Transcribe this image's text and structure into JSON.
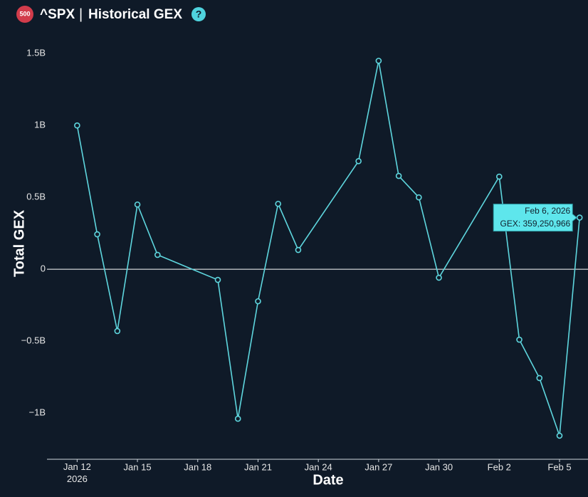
{
  "header": {
    "badge": "500",
    "symbol": "^SPX",
    "separator": "|",
    "title": "Historical GEX",
    "help": "?"
  },
  "chart_data": {
    "type": "line",
    "x_label": "Date",
    "y_label": "Total GEX",
    "x": [
      "2026-01-12",
      "2026-01-13",
      "2026-01-14",
      "2026-01-15",
      "2026-01-16",
      "2026-01-19",
      "2026-01-20",
      "2026-01-21",
      "2026-01-22",
      "2026-01-23",
      "2026-01-26",
      "2026-01-27",
      "2026-01-28",
      "2026-01-29",
      "2026-01-30",
      "2026-02-02",
      "2026-02-03",
      "2026-02-04",
      "2026-02-05",
      "2026-02-06"
    ],
    "series": [
      {
        "name": "GEX",
        "color": "#5ed6de",
        "values": [
          1000000000,
          243000000,
          -430000000,
          450000000,
          100000000,
          -74000000,
          -1040000000,
          -223000000,
          455000000,
          134000000,
          752000000,
          1450000000,
          649000000,
          500000000,
          -59000000,
          644000000,
          -490000000,
          -757000000,
          -1158000000,
          359250966
        ]
      }
    ],
    "xlim": [
      "2026-01-10T12:00",
      "2026-02-06T10:00"
    ],
    "xticks": [
      {
        "value": "2026-01-12",
        "label": "Jan 12\n2026"
      },
      {
        "value": "2026-01-15",
        "label": "Jan 15"
      },
      {
        "value": "2026-01-18",
        "label": "Jan 18"
      },
      {
        "value": "2026-01-21",
        "label": "Jan 21"
      },
      {
        "value": "2026-01-24",
        "label": "Jan 24"
      },
      {
        "value": "2026-01-27",
        "label": "Jan 27"
      },
      {
        "value": "2026-01-30",
        "label": "Jan 30"
      },
      {
        "value": "2026-02-02",
        "label": "Feb 2"
      },
      {
        "value": "2026-02-05",
        "label": "Feb 5"
      }
    ],
    "ylim": [
      -1322000000,
      1650000000
    ],
    "yticks": [
      {
        "value": -1000000000,
        "label": "−1B"
      },
      {
        "value": -500000000,
        "label": "−0.5B"
      },
      0,
      {
        "value": 500000000,
        "label": "0.5B"
      },
      {
        "value": 1000000000,
        "label": "1B"
      },
      {
        "value": 1500000000,
        "label": "1.5B"
      }
    ],
    "zero_line": true,
    "tooltip": {
      "index": 19,
      "date_label": "Feb 6, 2026",
      "value_label": "GEX: 359,250,966"
    }
  }
}
